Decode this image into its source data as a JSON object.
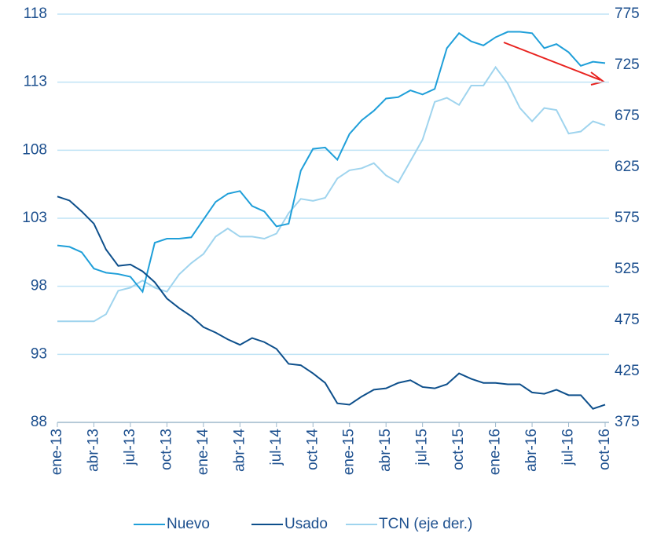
{
  "chart_data": {
    "type": "line",
    "categories": [
      "ene-13",
      null,
      null,
      "abr-13",
      null,
      null,
      "jul-13",
      null,
      null,
      "oct-13",
      null,
      null,
      "ene-14",
      null,
      null,
      "abr-14",
      null,
      null,
      "jul-14",
      null,
      null,
      "oct-14",
      null,
      null,
      "ene-15",
      null,
      null,
      "abr-15",
      null,
      null,
      "jul-15",
      null,
      null,
      "oct-15",
      null,
      null,
      "ene-16",
      null,
      null,
      "abr-16",
      null,
      null,
      "jul-16",
      null,
      null,
      "oct-16"
    ],
    "series": [
      {
        "name": "Nuevo",
        "color": "#1f9fd9",
        "values": [
          101.0,
          100.9,
          100.5,
          99.3,
          99.0,
          98.9,
          98.7,
          97.6,
          101.2,
          101.5,
          101.5,
          101.6,
          102.9,
          104.2,
          104.8,
          105.0,
          103.9,
          103.5,
          102.4,
          102.6,
          106.5,
          108.1,
          108.2,
          107.3,
          109.2,
          110.2,
          110.9,
          111.8,
          111.9,
          112.4,
          112.1,
          112.5,
          115.5,
          116.6,
          116.0,
          115.7,
          116.3,
          116.7,
          116.7,
          116.6,
          115.5,
          115.8,
          115.2,
          114.2,
          114.5,
          114.4
        ]
      },
      {
        "name": "Usado",
        "color": "#0d4f8b",
        "values": [
          104.6,
          104.3,
          103.5,
          102.6,
          100.7,
          99.5,
          99.6,
          99.1,
          98.3,
          97.1,
          96.4,
          95.8,
          95.0,
          94.6,
          94.1,
          93.7,
          94.2,
          93.9,
          93.4,
          92.3,
          92.2,
          91.6,
          90.9,
          89.4,
          89.3,
          89.9,
          90.4,
          90.5,
          90.9,
          91.1,
          90.6,
          90.5,
          90.8,
          91.6,
          91.2,
          90.9,
          90.9,
          90.8,
          90.8,
          90.2,
          90.1,
          90.4,
          90.0,
          90.0,
          89.0,
          89.3
        ]
      },
      {
        "name": "TCN (eje der.)",
        "color": "#9fd4ee",
        "axis": "y2",
        "values": [
          474,
          474,
          474,
          474,
          481,
          504,
          507,
          514,
          507,
          503,
          520,
          531,
          540,
          557,
          565,
          557,
          557,
          555,
          560,
          580,
          594,
          592,
          595,
          614,
          622,
          624,
          629,
          617,
          610,
          631,
          652,
          689,
          693,
          686,
          705,
          705,
          723,
          707,
          683,
          670,
          683,
          681,
          658,
          660,
          670,
          666
        ]
      }
    ],
    "ylim": [
      88,
      118
    ],
    "yticks": [
      88,
      93,
      98,
      103,
      108,
      113,
      118
    ],
    "y2lim": [
      375,
      775
    ],
    "y2ticks": [
      375,
      425,
      475,
      525,
      575,
      625,
      675,
      725,
      775
    ],
    "grid": true,
    "legend": "bottom"
  }
}
